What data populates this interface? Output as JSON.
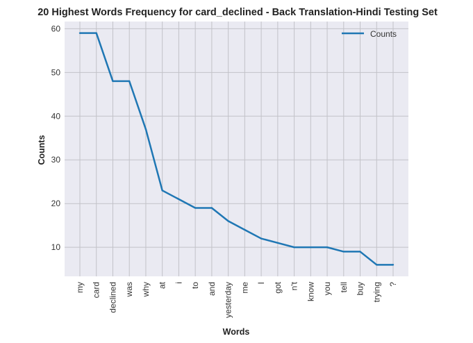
{
  "chart_data": {
    "type": "line",
    "title": "20 Highest Words Frequency for card_declined - Back Translation-Hindi Testing Set",
    "xlabel": "Words",
    "ylabel": "Counts",
    "categories": [
      "my",
      "card",
      "declined",
      "was",
      "why",
      "at",
      "i",
      "to",
      "and",
      "yesterday",
      "me",
      "I",
      "got",
      "n't",
      "know",
      "you",
      "tell",
      "buy",
      "trying",
      "?"
    ],
    "series": [
      {
        "name": "Counts",
        "values": [
          59,
          59,
          48,
          48,
          37,
          23,
          21,
          19,
          19,
          16,
          14,
          12,
          11,
          10,
          10,
          10,
          9,
          9,
          6,
          6
        ],
        "color": "#1f77b4"
      }
    ],
    "yticks": [
      10,
      20,
      30,
      40,
      50,
      60
    ],
    "ylim": [
      3.35,
      61.65
    ],
    "grid": true,
    "legend": "top-right",
    "background": "#eaeaf2",
    "grid_color": "#c2c2c8"
  }
}
